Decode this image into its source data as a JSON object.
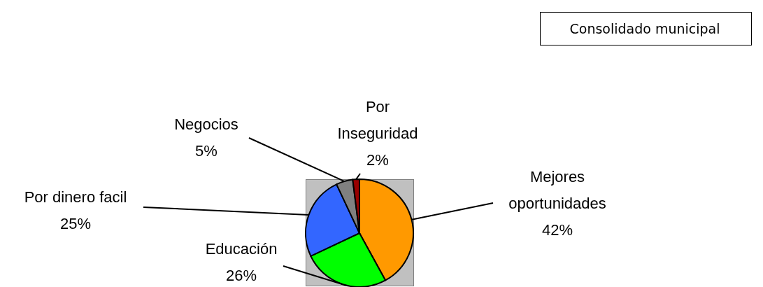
{
  "chart_data": {
    "type": "pie",
    "title": "Consolidado municipal",
    "categories": [
      "Mejores oportunidades",
      "Educación",
      "Por dinero facil",
      "Negocios",
      "Por Inseguridad"
    ],
    "values": [
      42,
      26,
      25,
      5,
      2
    ],
    "colors": [
      "#ff9900",
      "#00ff00",
      "#3366ff",
      "#808080",
      "#990000"
    ],
    "value_labels": [
      "42%",
      "26%",
      "25%",
      "5%",
      "2%"
    ]
  }
}
